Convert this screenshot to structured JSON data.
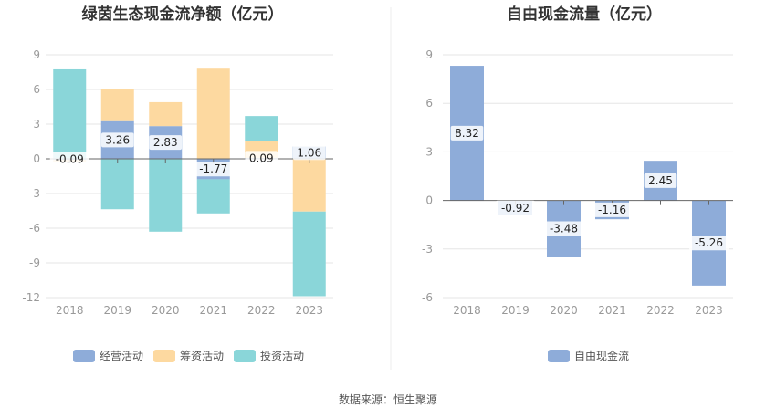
{
  "source": "数据来源：恒生聚源",
  "chart_data": [
    {
      "type": "bar",
      "stacked": true,
      "title": "绿茵生态现金流净额（亿元）",
      "categories": [
        "2018",
        "2019",
        "2020",
        "2021",
        "2022",
        "2023"
      ],
      "ylim": [
        -12,
        9
      ],
      "yticks": [
        9,
        6,
        3,
        0,
        -3,
        -6,
        -9,
        -12
      ],
      "grid": true,
      "legend_position": "bottom",
      "series": [
        {
          "name": "经营活动",
          "color": "#8eacd9",
          "values": [
            -0.09,
            3.26,
            2.83,
            -1.77,
            0.09,
            1.06
          ],
          "labels": [
            "-0.09",
            "3.26",
            "2.83",
            "-1.77",
            "0.09",
            "1.06"
          ]
        },
        {
          "name": "筹资活动",
          "color": "#fdd9a0",
          "values": [
            -0.15,
            2.74,
            2.07,
            7.8,
            1.48,
            -4.56
          ]
        },
        {
          "name": "投资活动",
          "color": "#8ad6d9",
          "values": [
            7.74,
            -4.36,
            -6.3,
            -2.95,
            2.13,
            -7.32
          ]
        }
      ]
    },
    {
      "type": "bar",
      "title": "自由现金流量（亿元）",
      "categories": [
        "2018",
        "2019",
        "2020",
        "2021",
        "2022",
        "2023"
      ],
      "ylim": [
        -6,
        9
      ],
      "yticks": [
        9,
        6,
        3,
        0,
        -3,
        -6
      ],
      "grid": true,
      "legend_position": "bottom",
      "series": [
        {
          "name": "自由现金流",
          "color": "#8eacd9",
          "values": [
            8.32,
            -0.92,
            -3.48,
            -1.16,
            2.45,
            -5.26
          ],
          "labels": [
            "8.32",
            "-0.92",
            "-3.48",
            "-1.16",
            "2.45",
            "-5.26"
          ]
        }
      ]
    }
  ]
}
